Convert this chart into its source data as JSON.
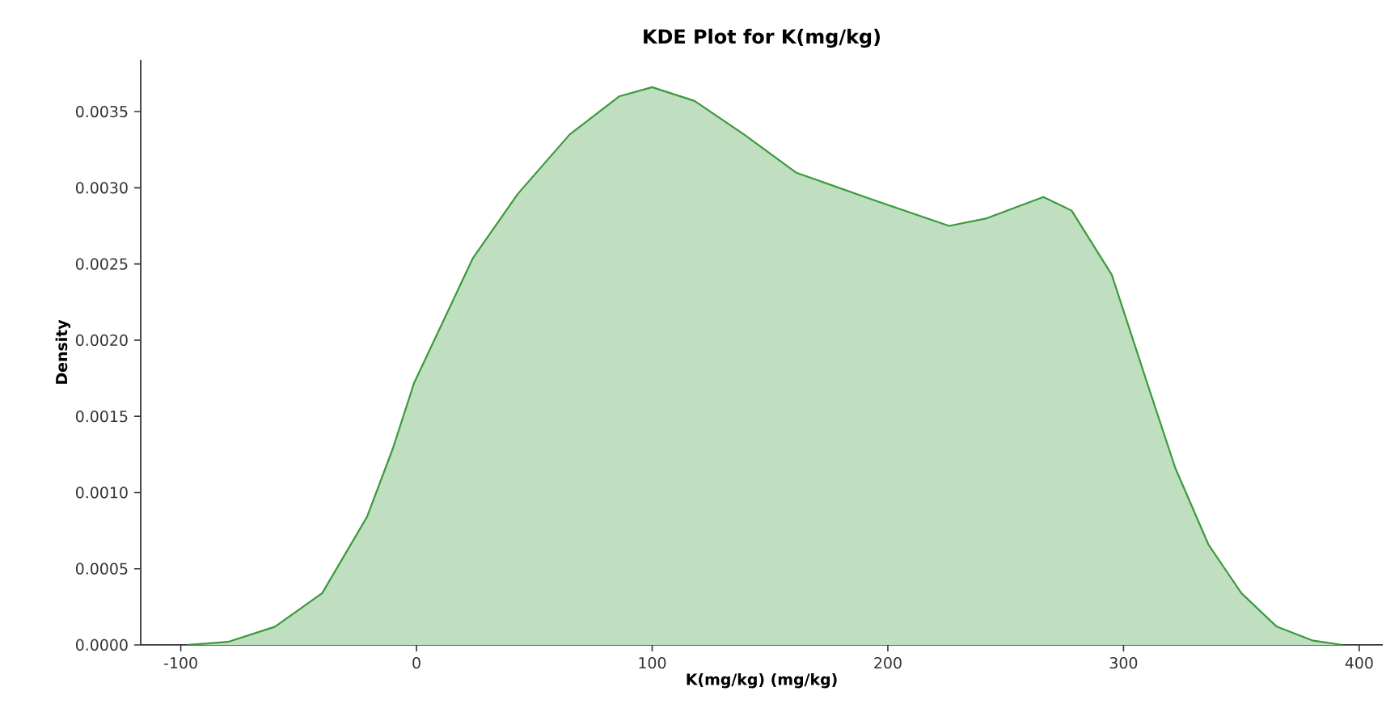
{
  "chart_data": {
    "type": "area",
    "title": "KDE Plot for K(mg/kg)",
    "xlabel": "K(mg/kg) (mg/kg)",
    "ylabel": "Density",
    "x": [
      -97,
      -80,
      -60,
      -40,
      -21,
      -10,
      -1,
      10,
      24,
      43,
      65,
      86,
      100,
      118,
      139,
      161,
      192,
      226,
      242,
      266,
      278,
      295,
      310,
      322,
      336,
      350,
      365,
      380,
      393
    ],
    "values": [
      0,
      2e-05,
      0.00012,
      0.00034,
      0.00084,
      0.00129,
      0.00172,
      0.00208,
      0.00254,
      0.00296,
      0.00335,
      0.0036,
      0.00366,
      0.00357,
      0.00335,
      0.0031,
      0.00293,
      0.00275,
      0.0028,
      0.00294,
      0.00285,
      0.00243,
      0.00172,
      0.00116,
      0.00066,
      0.00034,
      0.00012,
      3e-05,
      0
    ],
    "color": "#3a9a3a",
    "xlim": [
      -117,
      410
    ],
    "ylim": [
      0,
      0.00384
    ],
    "xticks": [
      -100,
      0,
      100,
      200,
      300,
      400
    ],
    "yticks": [
      {
        "value": 0,
        "label": "0.0000"
      },
      {
        "value": 0.0005,
        "label": "0.0005"
      },
      {
        "value": 0.001,
        "label": "0.0010"
      },
      {
        "value": 0.0015,
        "label": "0.0015"
      },
      {
        "value": 0.002,
        "label": "0.0020"
      },
      {
        "value": 0.0025,
        "label": "0.0025"
      },
      {
        "value": 0.003,
        "label": "0.0030"
      },
      {
        "value": 0.0035,
        "label": "0.0035"
      }
    ],
    "grid": false
  }
}
